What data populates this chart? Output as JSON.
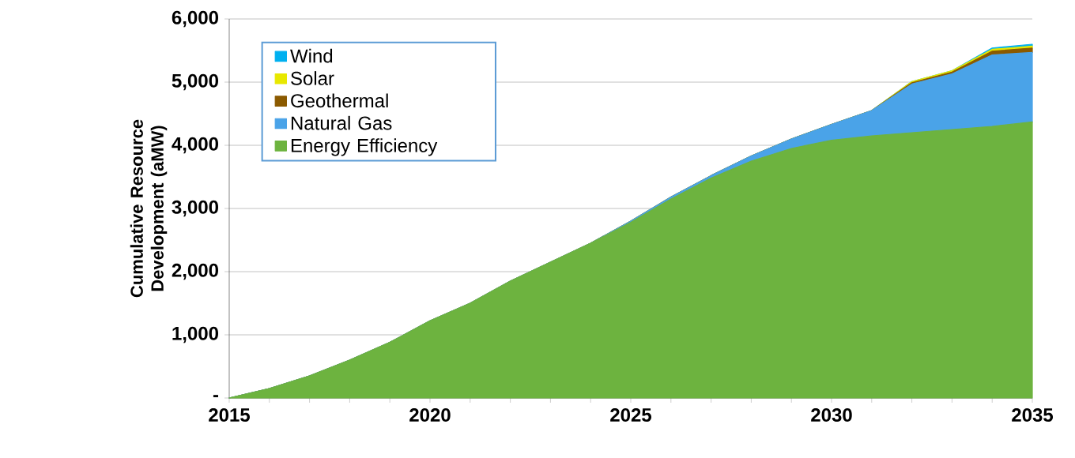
{
  "chart_data": {
    "type": "area",
    "stacked": true,
    "ylabel": "Cumulative Resource Development (aMW)",
    "x": [
      2015,
      2016,
      2017,
      2018,
      2019,
      2020,
      2021,
      2022,
      2023,
      2024,
      2025,
      2026,
      2027,
      2028,
      2029,
      2030,
      2031,
      2032,
      2033,
      2034,
      2035
    ],
    "series": [
      {
        "name": "Energy Efficiency",
        "color": "#6db33f",
        "values": [
          0,
          150,
          350,
          600,
          880,
          1220,
          1500,
          1850,
          2150,
          2450,
          2780,
          3150,
          3480,
          3750,
          3950,
          4080,
          4150,
          4200,
          4250,
          4300,
          4370
        ]
      },
      {
        "name": "Natural Gas",
        "color": "#4aa3e8",
        "values": [
          0,
          0,
          0,
          0,
          0,
          0,
          0,
          0,
          0,
          0,
          20,
          30,
          40,
          80,
          150,
          250,
          400,
          770,
          880,
          1130,
          1100
        ]
      },
      {
        "name": "Geothermal",
        "color": "#8b5a00",
        "values": [
          0,
          0,
          0,
          0,
          0,
          0,
          0,
          0,
          0,
          0,
          0,
          0,
          0,
          0,
          0,
          0,
          0,
          20,
          30,
          60,
          70
        ]
      },
      {
        "name": "Solar",
        "color": "#e8e800",
        "values": [
          0,
          0,
          0,
          0,
          0,
          0,
          0,
          0,
          0,
          0,
          0,
          0,
          0,
          0,
          0,
          0,
          0,
          20,
          20,
          30,
          30
        ]
      },
      {
        "name": "Wind",
        "color": "#00b0f0",
        "values": [
          0,
          0,
          0,
          0,
          0,
          0,
          0,
          0,
          0,
          0,
          0,
          0,
          0,
          0,
          0,
          0,
          0,
          0,
          0,
          20,
          30
        ]
      }
    ],
    "xlim": [
      2015,
      2035
    ],
    "xticks": [
      2015,
      {
        "value": 2016,
        "label": null
      },
      {
        "value": 2017,
        "label": null
      },
      {
        "value": 2018,
        "label": null
      },
      {
        "value": 2019,
        "label": null
      },
      2020,
      {
        "value": 2021,
        "label": null
      },
      {
        "value": 2022,
        "label": null
      },
      {
        "value": 2023,
        "label": null
      },
      {
        "value": 2024,
        "label": null
      },
      2025,
      {
        "value": 2026,
        "label": null
      },
      {
        "value": 2027,
        "label": null
      },
      {
        "value": 2028,
        "label": null
      },
      {
        "value": 2029,
        "label": null
      },
      2030,
      {
        "value": 2031,
        "label": null
      },
      {
        "value": 2032,
        "label": null
      },
      {
        "value": 2033,
        "label": null
      },
      {
        "value": 2034,
        "label": null
      },
      2035
    ],
    "ylim": [
      0,
      6000
    ],
    "yticks": [
      {
        "value": 0,
        "label": "-"
      },
      {
        "value": 1000,
        "label": "1,000"
      },
      {
        "value": 2000,
        "label": "2,000"
      },
      {
        "value": 3000,
        "label": "3,000"
      },
      {
        "value": 4000,
        "label": "4,000"
      },
      {
        "value": 5000,
        "label": "5,000"
      },
      {
        "value": 6000,
        "label": "6,000"
      }
    ],
    "grid": "y",
    "legend": "top left"
  }
}
